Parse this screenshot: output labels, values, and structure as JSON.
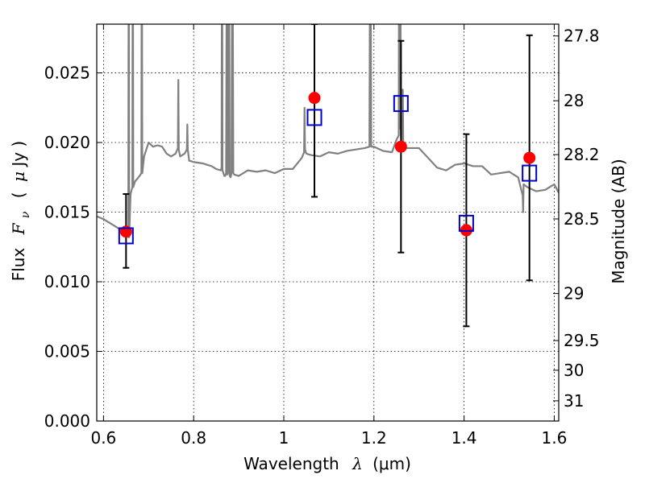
{
  "chart_data": {
    "type": "scatter",
    "xlabel_text": "Wavelength",
    "xlabel_symbol": "λ",
    "xlabel_unit": "(μm)",
    "ylabel_text": "Flux",
    "ylabel_symbol": "F",
    "ylabel_subscript": "ν",
    "ylabel_unit_open": "(",
    "ylabel_unit_mu": "μ",
    "ylabel_unit_rest": "Jy )",
    "y2label": "Magnitude (AB)",
    "xlim": [
      0.585,
      1.61
    ],
    "ylim": [
      0.0,
      0.0285
    ],
    "grid": true,
    "x_ticks": [
      {
        "value": 0.6,
        "label": "0.6"
      },
      {
        "value": 0.8,
        "label": "0.8"
      },
      {
        "value": 1.0,
        "label": "1"
      },
      {
        "value": 1.2,
        "label": "1.2"
      },
      {
        "value": 1.4,
        "label": "1.4"
      },
      {
        "value": 1.6,
        "label": "1.6"
      }
    ],
    "y_ticks": [
      {
        "value": 0.0,
        "label": "0.000"
      },
      {
        "value": 0.005,
        "label": "0.005"
      },
      {
        "value": 0.01,
        "label": "0.010"
      },
      {
        "value": 0.015,
        "label": "0.015"
      },
      {
        "value": 0.02,
        "label": "0.020"
      },
      {
        "value": 0.025,
        "label": "0.025"
      }
    ],
    "y2_ticks": [
      {
        "value": 27.8,
        "label": "27.8"
      },
      {
        "value": 28.0,
        "label": "28"
      },
      {
        "value": 28.2,
        "label": "28.2"
      },
      {
        "value": 28.5,
        "label": "28.5"
      },
      {
        "value": 29.0,
        "label": "29"
      },
      {
        "value": 29.5,
        "label": "29.5"
      },
      {
        "value": 30.0,
        "label": "30"
      },
      {
        "value": 31.0,
        "label": "31"
      }
    ],
    "observed": {
      "color": "#ff0000",
      "marker": "circle",
      "points": [
        {
          "x": 0.65,
          "y": 0.0136,
          "yerr_low": 0.011,
          "yerr_high": 0.0163
        },
        {
          "x": 1.068,
          "y": 0.0232,
          "yerr_low": 0.0161,
          "yerr_high": 0.0285
        },
        {
          "x": 1.26,
          "y": 0.0197,
          "yerr_low": 0.0121,
          "yerr_high": 0.0273
        },
        {
          "x": 1.405,
          "y": 0.0137,
          "yerr_low": 0.0068,
          "yerr_high": 0.0206
        },
        {
          "x": 1.545,
          "y": 0.0189,
          "yerr_low": 0.0101,
          "yerr_high": 0.0277
        }
      ]
    },
    "model_photometry": {
      "color": "#0000cc",
      "marker": "square-open",
      "points": [
        {
          "x": 0.65,
          "y": 0.0133
        },
        {
          "x": 1.068,
          "y": 0.0218
        },
        {
          "x": 1.26,
          "y": 0.0228
        },
        {
          "x": 1.405,
          "y": 0.0142
        },
        {
          "x": 1.545,
          "y": 0.0178
        }
      ]
    },
    "model_spectrum": {
      "color": "#808080",
      "x": [
        0.585,
        0.6,
        0.62,
        0.64,
        0.655,
        0.656,
        0.657,
        0.66,
        0.664,
        0.665,
        0.666,
        0.67,
        0.68,
        0.684,
        0.685,
        0.686,
        0.69,
        0.7,
        0.71,
        0.72,
        0.73,
        0.74,
        0.75,
        0.76,
        0.765,
        0.766,
        0.767,
        0.77,
        0.78,
        0.785,
        0.786,
        0.787,
        0.79,
        0.8,
        0.82,
        0.84,
        0.85,
        0.86,
        0.862,
        0.863,
        0.864,
        0.866,
        0.868,
        0.87,
        0.872,
        0.874,
        0.875,
        0.876,
        0.878,
        0.88,
        0.882,
        0.884,
        0.886,
        0.888,
        0.89,
        0.9,
        0.92,
        0.94,
        0.96,
        0.98,
        1.0,
        1.02,
        1.04,
        1.045,
        1.046,
        1.047,
        1.05,
        1.06,
        1.08,
        1.1,
        1.12,
        1.14,
        1.16,
        1.18,
        1.19,
        1.192,
        1.194,
        1.2,
        1.22,
        1.24,
        1.25,
        1.255,
        1.256,
        1.257,
        1.258,
        1.26,
        1.263,
        1.264,
        1.265,
        1.27,
        1.3,
        1.32,
        1.34,
        1.36,
        1.38,
        1.4,
        1.42,
        1.44,
        1.46,
        1.48,
        1.5,
        1.52,
        1.53,
        1.531,
        1.532,
        1.54,
        1.56,
        1.58,
        1.6,
        1.61
      ],
      "y": [
        0.0147,
        0.0145,
        0.0141,
        0.0137,
        0.0132,
        0.04,
        0.0132,
        0.0163,
        0.0168,
        0.04,
        0.0168,
        0.0172,
        0.0176,
        0.0178,
        0.04,
        0.0178,
        0.019,
        0.02,
        0.0197,
        0.0198,
        0.0197,
        0.0192,
        0.019,
        0.0192,
        0.0196,
        0.0245,
        0.0195,
        0.019,
        0.0192,
        0.0195,
        0.0213,
        0.0195,
        0.0187,
        0.0186,
        0.0185,
        0.0183,
        0.0181,
        0.018,
        0.0182,
        0.04,
        0.018,
        0.0178,
        0.0176,
        0.0176,
        0.0178,
        0.04,
        0.0177,
        0.0178,
        0.04,
        0.0176,
        0.0175,
        0.0178,
        0.04,
        0.0178,
        0.0177,
        0.0176,
        0.018,
        0.0179,
        0.018,
        0.0178,
        0.0181,
        0.0181,
        0.0189,
        0.0193,
        0.0225,
        0.0195,
        0.0192,
        0.0191,
        0.019,
        0.0193,
        0.0192,
        0.0194,
        0.0195,
        0.0196,
        0.0197,
        0.04,
        0.0197,
        0.0197,
        0.0194,
        0.0193,
        0.0202,
        0.0205,
        0.04,
        0.021,
        0.04,
        0.0205,
        0.02,
        0.0238,
        0.02,
        0.0196,
        0.0196,
        0.0189,
        0.0182,
        0.018,
        0.0184,
        0.0185,
        0.0183,
        0.0183,
        0.0177,
        0.0178,
        0.0179,
        0.0175,
        0.0162,
        0.015,
        0.017,
        0.0168,
        0.0165,
        0.0166,
        0.017,
        0.0164
      ]
    }
  }
}
